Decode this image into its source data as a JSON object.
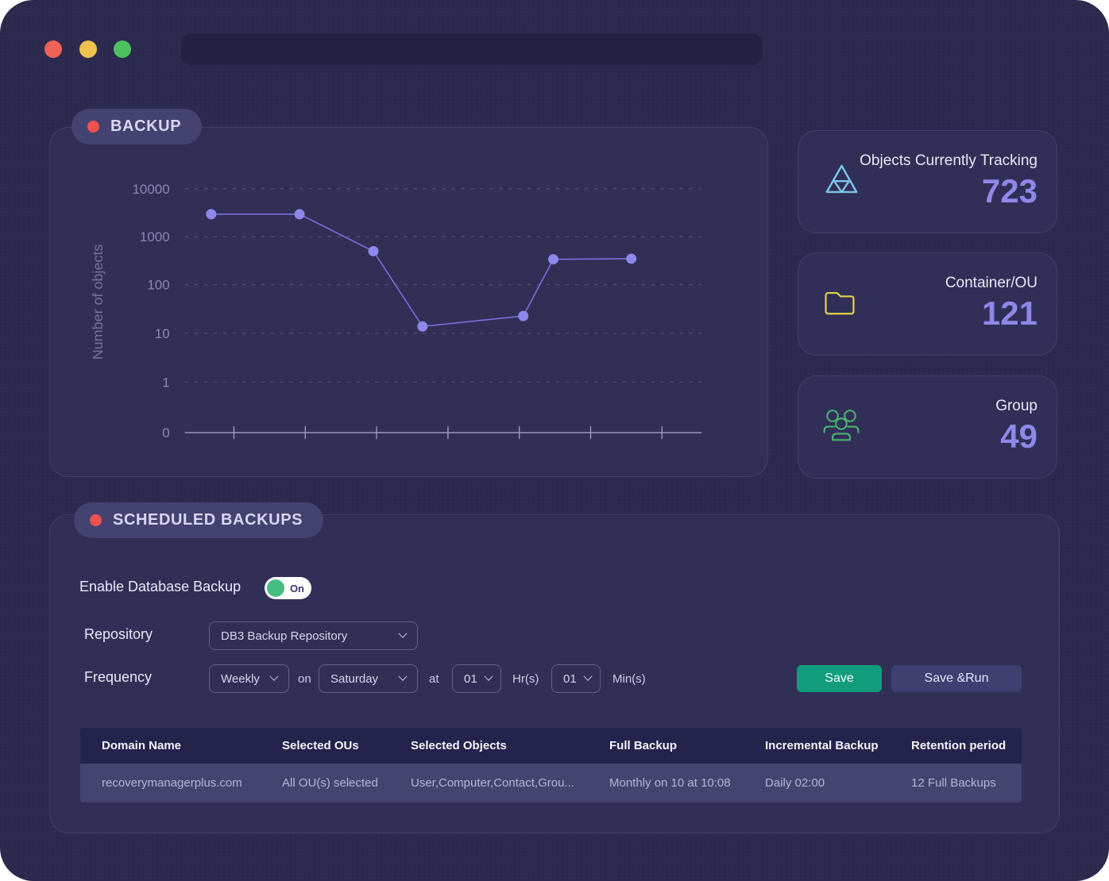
{
  "window": {
    "traffic_lights": [
      "close",
      "minimize",
      "zoom"
    ],
    "address_bar_value": ""
  },
  "chart_section": {
    "label": "BACKUP"
  },
  "chart_data": {
    "type": "line",
    "title": "",
    "xlabel": "",
    "ylabel": "Number of objects",
    "yscale": "log",
    "ytick_labels": [
      "10000",
      "1000",
      "100",
      "10",
      "1",
      "0"
    ],
    "x_tick_count": 7,
    "grid": "dashed-horizontal",
    "legend": "none",
    "series": [
      {
        "name": "Number of objects",
        "x_fractions": [
          0.051,
          0.222,
          0.365,
          0.46,
          0.655,
          0.713,
          0.864
        ],
        "values": [
          2900,
          2900,
          500,
          14,
          23,
          340,
          350
        ]
      }
    ],
    "line_color": "#7a70de",
    "point_color": "#9087ec"
  },
  "stats_cards": [
    {
      "icon": "objects-tracking-icon",
      "title": "Objects Currently Tracking",
      "value": "723"
    },
    {
      "icon": "folder-icon",
      "title": "Container/OU",
      "value": "121"
    },
    {
      "icon": "group-icon",
      "title": "Group",
      "value": "49"
    }
  ],
  "scheduled_section": {
    "label": "SCHEDULED BACKUPS",
    "enable_label": "Enable Database Backup",
    "toggle_state": "On",
    "repository_label": "Repository",
    "repository_value": "DB3 Backup Repository",
    "frequency_label": "Frequency",
    "interval_value": "Weekly",
    "on_word": "on",
    "day_value": "Saturday",
    "at_word": "at",
    "hour_value": "01",
    "hour_unit": "Hr(s)",
    "minute_value": "01",
    "minute_unit": "Min(s)",
    "save_label": "Save",
    "save_run_label": "Save &Run",
    "table": {
      "headers": [
        "Domain Name",
        "Selected OUs",
        "Selected Objects",
        "Full Backup",
        "Incremental Backup",
        "Retention period"
      ],
      "rows": [
        [
          "recoverymanagerplus.com",
          "All OU(s) selected",
          "User,Computer,Contact,Grou...",
          "Monthly on 10 at 10:08",
          "Daily 02:00",
          "12 Full Backups"
        ]
      ]
    }
  },
  "colors": {
    "window_bg": "#2b2a4e",
    "panel_bg": "#312f56",
    "accent_purple": "#8f88ea",
    "badge_red": "#f0534e",
    "save_green": "#119c7b",
    "toggle_green": "#46be83",
    "tracking_icon_blue": "#7cc6ea",
    "folder_icon_yellow": "#e5d34a",
    "group_icon_green": "#4cb371"
  }
}
